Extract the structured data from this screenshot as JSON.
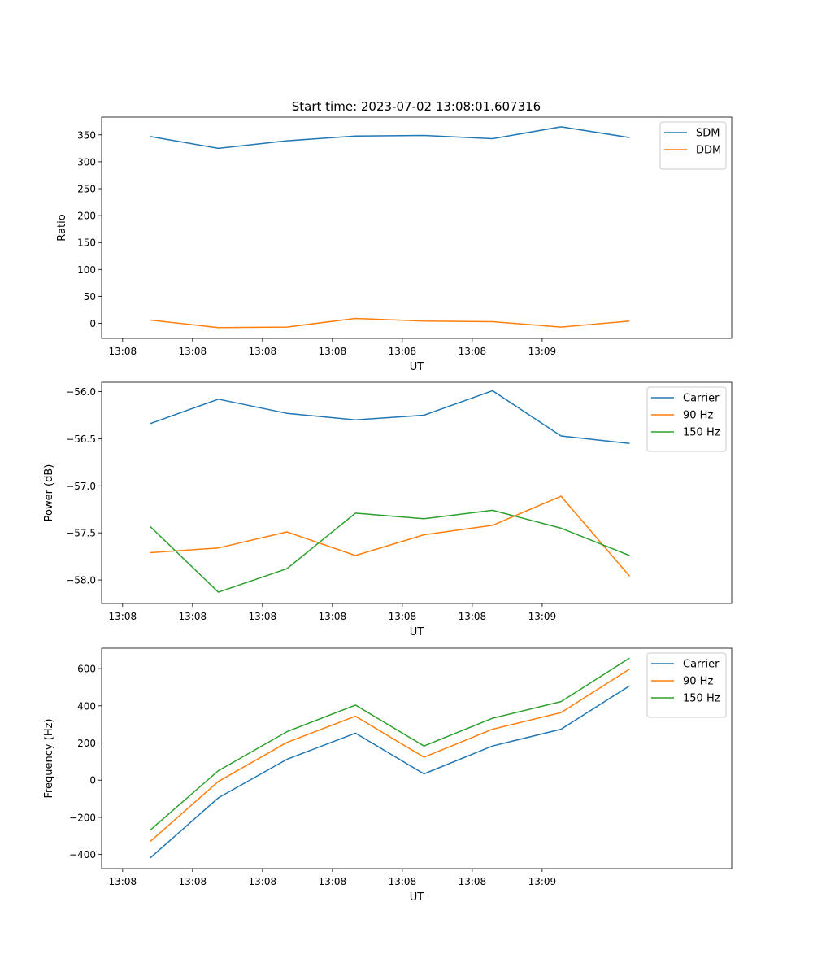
{
  "figure_title": "Start time: 2023-07-02 13:08:01.607316",
  "colors": {
    "c0": "#1f77b4",
    "c1": "#ff7f0e",
    "c2": "#2ca02c"
  },
  "chart_data": [
    {
      "type": "line",
      "xlabel": "UT",
      "ylabel": "Ratio",
      "x_tick_labels": [
        "13:08",
        "13:08",
        "13:08",
        "13:08",
        "13:08",
        "13:08",
        "13:09"
      ],
      "xlim": [
        -0.46,
        8.55
      ],
      "x": [
        0.23,
        1.21,
        2.19,
        3.17,
        4.15,
        5.13,
        6.11,
        7.09
      ],
      "ylim": [
        -28,
        383
      ],
      "y_ticks": [
        0,
        50,
        100,
        150,
        200,
        250,
        300,
        350
      ],
      "y_tick_labels": [
        "0",
        "50",
        "100",
        "150",
        "200",
        "250",
        "300",
        "350"
      ],
      "legend_position": "top-right",
      "series": [
        {
          "name": "SDM",
          "color": "#1f77b4",
          "values": [
            347,
            325,
            339,
            348,
            349,
            343,
            365,
            345
          ]
        },
        {
          "name": "DDM",
          "color": "#ff7f0e",
          "values": [
            6,
            -8,
            -7,
            9,
            4,
            3,
            -7,
            4
          ]
        }
      ]
    },
    {
      "type": "line",
      "xlabel": "UT",
      "ylabel": "Power (dB)",
      "x_tick_labels": [
        "13:08",
        "13:08",
        "13:08",
        "13:08",
        "13:08",
        "13:08",
        "13:09"
      ],
      "xlim": [
        -0.46,
        8.55
      ],
      "x": [
        0.23,
        1.21,
        2.19,
        3.17,
        4.15,
        5.13,
        6.11,
        7.09
      ],
      "ylim": [
        -58.25,
        -55.9
      ],
      "y_ticks": [
        -58.0,
        -57.5,
        -57.0,
        -56.5,
        -56.0
      ],
      "y_tick_labels": [
        "−58.0",
        "−57.5",
        "−57.0",
        "−56.5",
        "−56.0"
      ],
      "legend_position": "top-right",
      "series": [
        {
          "name": "Carrier",
          "color": "#1f77b4",
          "values": [
            -56.34,
            -56.08,
            -56.23,
            -56.3,
            -56.25,
            -55.99,
            -56.47,
            -56.55
          ]
        },
        {
          "name": "90 Hz",
          "color": "#ff7f0e",
          "values": [
            -57.71,
            -57.66,
            -57.49,
            -57.74,
            -57.52,
            -57.42,
            -57.11,
            -57.96
          ]
        },
        {
          "name": "150 Hz",
          "color": "#2ca02c",
          "values": [
            -57.43,
            -58.13,
            -57.88,
            -57.29,
            -57.35,
            -57.26,
            -57.45,
            -57.74
          ]
        }
      ]
    },
    {
      "type": "line",
      "xlabel": "UT",
      "ylabel": "Frequency (Hz)",
      "x_tick_labels": [
        "13:08",
        "13:08",
        "13:08",
        "13:08",
        "13:08",
        "13:08",
        "13:09"
      ],
      "xlim": [
        -0.46,
        8.55
      ],
      "x": [
        0.23,
        1.21,
        2.19,
        3.17,
        4.15,
        5.13,
        6.11,
        7.09
      ],
      "ylim": [
        -476,
        710
      ],
      "y_ticks": [
        -400,
        -200,
        0,
        200,
        400,
        600
      ],
      "y_tick_labels": [
        "−400",
        "−200",
        "0",
        "200",
        "400",
        "600"
      ],
      "legend_position": "top-right",
      "series": [
        {
          "name": "Carrier",
          "color": "#1f77b4",
          "values": [
            -420,
            -95,
            112,
            253,
            34,
            184,
            274,
            508
          ]
        },
        {
          "name": "90 Hz",
          "color": "#ff7f0e",
          "values": [
            -331,
            -7,
            203,
            344,
            124,
            274,
            364,
            598
          ]
        },
        {
          "name": "150 Hz",
          "color": "#2ca02c",
          "values": [
            -270,
            51,
            261,
            404,
            184,
            333,
            423,
            657
          ]
        }
      ]
    }
  ]
}
